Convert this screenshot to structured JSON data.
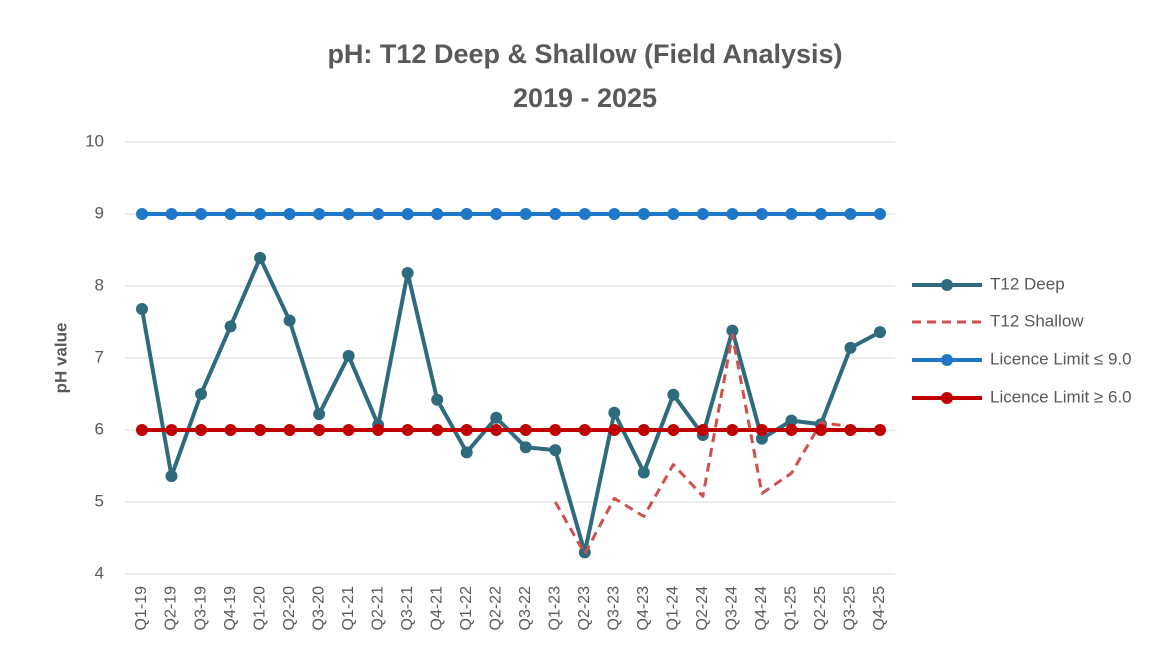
{
  "chart_data": {
    "type": "line",
    "title": "pH: T12 Deep & Shallow (Field Analysis)",
    "subtitle": "2019 - 2025",
    "y_label": "pH value",
    "categories": [
      "Q1-19",
      "Q2-19",
      "Q3-19",
      "Q4-19",
      "Q1-20",
      "Q2-20",
      "Q3-20",
      "Q1-21",
      "Q2-21",
      "Q3-21",
      "Q4-21",
      "Q1-22",
      "Q2-22",
      "Q3-22",
      "Q1-23",
      "Q2-23",
      "Q3-23",
      "Q4-23",
      "Q1-24",
      "Q2-24",
      "Q3-24",
      "Q4-24",
      "Q1-25",
      "Q2-25",
      "Q3-25",
      "Q4-25"
    ],
    "series": [
      {
        "name": "T12 Deep",
        "color": "#2e6b7e",
        "style": "solid",
        "markers": true,
        "values": [
          7.68,
          5.36,
          6.5,
          7.44,
          8.39,
          7.52,
          6.22,
          7.03,
          6.07,
          8.18,
          6.42,
          5.69,
          6.17,
          5.76,
          5.72,
          4.3,
          6.24,
          5.41,
          6.49,
          5.93,
          7.38,
          5.88,
          6.13,
          6.08,
          7.14,
          7.36
        ]
      },
      {
        "name": "T12 Shallow",
        "color": "#d0504e",
        "style": "dashed",
        "markers": false,
        "values": [
          null,
          null,
          null,
          null,
          null,
          null,
          null,
          null,
          null,
          null,
          null,
          null,
          null,
          null,
          5.0,
          4.28,
          5.05,
          4.8,
          5.52,
          5.08,
          7.32,
          5.12,
          5.4,
          6.1,
          6.05,
          5.95
        ]
      },
      {
        "name": "Licence Limit ≤ 9.0",
        "color": "#1f77c8",
        "style": "solid",
        "markers": true,
        "values": [
          9,
          9,
          9,
          9,
          9,
          9,
          9,
          9,
          9,
          9,
          9,
          9,
          9,
          9,
          9,
          9,
          9,
          9,
          9,
          9,
          9,
          9,
          9,
          9,
          9,
          9
        ]
      },
      {
        "name": "Licence Limit ≥ 6.0",
        "color": "#c00000",
        "style": "solid",
        "markers": true,
        "values": [
          6,
          6,
          6,
          6,
          6,
          6,
          6,
          6,
          6,
          6,
          6,
          6,
          6,
          6,
          6,
          6,
          6,
          6,
          6,
          6,
          6,
          6,
          6,
          6,
          6,
          6
        ]
      }
    ],
    "ylim": [
      4,
      10
    ],
    "yticks": [
      4,
      5,
      6,
      7,
      8,
      9,
      10
    ],
    "grid": true,
    "legend": "right"
  }
}
